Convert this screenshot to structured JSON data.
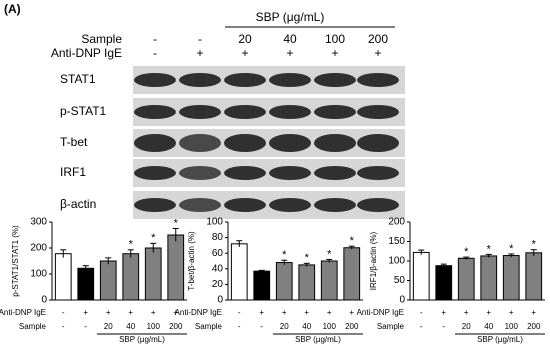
{
  "panel_label": "(A)",
  "blot": {
    "sbp_label": "SBP (μg/mL)",
    "rows": [
      {
        "name": "Sample",
        "labels": [
          "-",
          "-",
          "20",
          "40",
          "100",
          "200"
        ]
      },
      {
        "name": "Anti-DNP IgE",
        "labels": [
          "-",
          "+",
          "+",
          "+",
          "+",
          "+"
        ]
      }
    ],
    "bands": [
      "STAT1",
      "p-STAT1",
      "T-bet",
      "IRF1",
      "β-actin"
    ]
  },
  "chart_data": [
    {
      "type": "bar",
      "y_label": "p-STAT1/STAT1 (%)",
      "ige_label": "Anti-DNP IgE",
      "ige_labels": [
        "-",
        "+",
        "+",
        "+",
        "+",
        "+"
      ],
      "sample_label": "Sample",
      "categories": [
        "-",
        "-",
        "20",
        "40",
        "100",
        "200"
      ],
      "group_label": "SBP (μg/mL)",
      "values": [
        178,
        122,
        150,
        178,
        200,
        250
      ],
      "errors": [
        15,
        10,
        12,
        15,
        18,
        25
      ],
      "significance": [
        null,
        null,
        null,
        "*",
        "*",
        "*"
      ],
      "colors": [
        "#ffffff",
        "#000000",
        "#808080",
        "#808080",
        "#808080",
        "#808080"
      ],
      "ylim": [
        0,
        300
      ],
      "yticks": [
        0,
        100,
        200,
        300
      ]
    },
    {
      "type": "bar",
      "y_label": "T-bet/β-actin (%)",
      "ige_label": "Anti-DNP IgE",
      "ige_labels": [
        "-",
        "+",
        "+",
        "+",
        "+",
        "+"
      ],
      "sample_label": "Sample",
      "categories": [
        "-",
        "-",
        "20",
        "40",
        "100",
        "200"
      ],
      "group_label": "SBP (μg/mL)",
      "values": [
        72,
        37,
        48,
        45,
        50,
        67
      ],
      "errors": [
        4,
        1,
        3,
        2,
        2,
        2
      ],
      "significance": [
        null,
        null,
        "*",
        "*",
        "*",
        "*"
      ],
      "colors": [
        "#ffffff",
        "#000000",
        "#808080",
        "#808080",
        "#808080",
        "#808080"
      ],
      "ylim": [
        0,
        100
      ],
      "yticks": [
        0,
        20,
        40,
        60,
        80,
        100
      ]
    },
    {
      "type": "bar",
      "y_label": "IRF1/β-actin (%)",
      "ige_label": "Anti-DNP IgE",
      "ige_labels": [
        "-",
        "+",
        "+",
        "+",
        "+",
        "+"
      ],
      "sample_label": "Sample",
      "categories": [
        "-",
        "-",
        "20",
        "40",
        "100",
        "200"
      ],
      "group_label": "SBP (μg/mL)",
      "values": [
        122,
        88,
        107,
        113,
        114,
        121
      ],
      "errors": [
        6,
        4,
        3,
        4,
        4,
        8
      ],
      "significance": [
        null,
        null,
        "*",
        "*",
        "*",
        "*"
      ],
      "colors": [
        "#ffffff",
        "#000000",
        "#808080",
        "#808080",
        "#808080",
        "#808080"
      ],
      "ylim": [
        0,
        200
      ],
      "yticks": [
        0,
        50,
        100,
        150,
        200
      ]
    }
  ]
}
